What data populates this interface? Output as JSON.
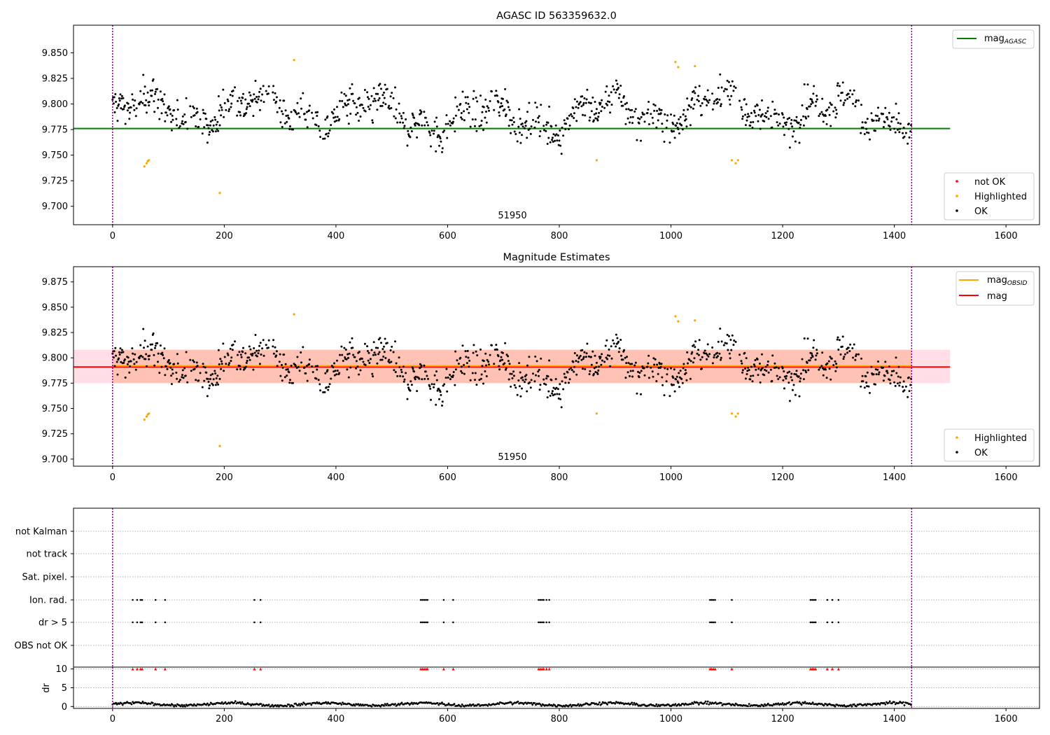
{
  "colors": {
    "ok": "#000000",
    "highlighted": "#ffa500",
    "not_ok": "#ff0000",
    "agasc_line": "#008000",
    "mag_line": "#ff0000",
    "mag_obsid_line": "#ffa500",
    "band_outer": "#ffc0cb",
    "band_inner": "#ffa07a",
    "vline": "#800080",
    "grid": "#b0b0b0"
  },
  "chart_data": [
    {
      "type": "scatter",
      "title": "AGASC ID 563359632.0",
      "xlim": [
        -70,
        1660
      ],
      "ylim": [
        9.682,
        9.877
      ],
      "xticks": [
        "0",
        "200",
        "400",
        "600",
        "800",
        "1000",
        "1200",
        "1400",
        "1600"
      ],
      "yticks": [
        "9.700",
        "9.725",
        "9.750",
        "9.775",
        "9.800",
        "9.825",
        "9.850"
      ],
      "obsid_label": "51950",
      "obsid_boundaries": [
        0,
        1431
      ],
      "agasc_mag": 9.776,
      "agasc_line_xrange": [
        -70,
        1500
      ],
      "highlighted_points": [
        [
          57,
          9.739
        ],
        [
          61,
          9.742
        ],
        [
          63,
          9.744
        ],
        [
          65,
          9.745
        ],
        [
          192,
          9.713
        ],
        [
          325,
          9.843
        ],
        [
          867,
          9.745
        ],
        [
          1008,
          9.841
        ],
        [
          1013,
          9.836
        ],
        [
          1043,
          9.837
        ],
        [
          1109,
          9.745
        ],
        [
          1116,
          9.742
        ],
        [
          1120,
          9.745
        ]
      ],
      "legends": [
        {
          "placement": "top-right",
          "entries": [
            {
              "label": "mag",
              "subscript": "AGASC",
              "kind": "line",
              "color": "#008000"
            }
          ]
        },
        {
          "placement": "bottom-right",
          "entries": [
            {
              "label": "not OK",
              "kind": "dot",
              "color": "#ff0000"
            },
            {
              "label": "Highlighted",
              "kind": "dot",
              "color": "#ffa500"
            },
            {
              "label": "OK",
              "kind": "dot",
              "color": "#000000"
            }
          ]
        }
      ]
    },
    {
      "type": "scatter",
      "title": "Magnitude Estimates",
      "xlim": [
        -70,
        1660
      ],
      "ylim": [
        9.693,
        9.89
      ],
      "xticks": [
        "0",
        "200",
        "400",
        "600",
        "800",
        "1000",
        "1200",
        "1400",
        "1600"
      ],
      "yticks": [
        "9.700",
        "9.725",
        "9.750",
        "9.775",
        "9.800",
        "9.825",
        "9.850",
        "9.875"
      ],
      "obsid_label": "51950",
      "obsid_boundaries": [
        0,
        1431
      ],
      "mag": 9.791,
      "mag_band": [
        9.775,
        9.808
      ],
      "mag_obsid": 9.792,
      "mag_obsid_band": [
        9.775,
        9.808
      ],
      "line_xrange": [
        -70,
        1500
      ],
      "highlighted_points": [
        [
          57,
          9.739
        ],
        [
          61,
          9.742
        ],
        [
          63,
          9.744
        ],
        [
          65,
          9.745
        ],
        [
          192,
          9.713
        ],
        [
          325,
          9.843
        ],
        [
          867,
          9.745
        ],
        [
          1008,
          9.841
        ],
        [
          1013,
          9.836
        ],
        [
          1043,
          9.837
        ],
        [
          1109,
          9.745
        ],
        [
          1116,
          9.742
        ],
        [
          1120,
          9.745
        ]
      ],
      "legends": [
        {
          "placement": "top-right",
          "entries": [
            {
              "label": "mag",
              "subscript": "OBSID",
              "kind": "line",
              "color": "#ffa500"
            },
            {
              "label": "mag",
              "kind": "line",
              "color": "#ff0000"
            }
          ]
        },
        {
          "placement": "bottom-right",
          "entries": [
            {
              "label": "Highlighted",
              "kind": "dot",
              "color": "#ffa500"
            },
            {
              "label": "OK",
              "kind": "dot",
              "color": "#000000"
            }
          ]
        }
      ]
    },
    {
      "type": "scatter",
      "title": "",
      "xlim": [
        -70,
        1660
      ],
      "xticks": [
        "0",
        "200",
        "400",
        "600",
        "800",
        "1000",
        "1200",
        "1400",
        "1600"
      ],
      "flag_rows": [
        "not Kalman",
        "not track",
        "Sat. pixel.",
        "Ion. rad.",
        "dr > 5",
        "OBS not OK"
      ],
      "flag_rows_points": {
        "Ion. rad.": [
          36,
          44,
          50,
          53,
          77,
          94,
          254,
          265,
          552,
          555,
          558,
          561,
          564,
          593,
          610,
          763,
          766,
          769,
          772,
          777,
          782,
          1070,
          1073,
          1076,
          1079,
          1109,
          1250,
          1253,
          1256,
          1259,
          1280,
          1289,
          1300
        ],
        "dr > 5": [
          36,
          44,
          50,
          53,
          77,
          94,
          254,
          265,
          552,
          555,
          558,
          561,
          564,
          593,
          610,
          763,
          766,
          769,
          772,
          777,
          782,
          1070,
          1073,
          1076,
          1079,
          1109,
          1250,
          1253,
          1256,
          1259,
          1280,
          1289,
          1300
        ]
      },
      "obsid_boundaries": [
        0,
        1431
      ]
    },
    {
      "type": "scatter",
      "title": "",
      "ylabel": "dr",
      "xlim": [
        -70,
        1660
      ],
      "ylim": [
        -0.5,
        10.5
      ],
      "xticks": [
        "0",
        "200",
        "400",
        "600",
        "800",
        "1000",
        "1200",
        "1400",
        "1600"
      ],
      "yticks": [
        "0",
        "5",
        "10"
      ],
      "clipped_value": 10,
      "clipped_points": [
        36,
        44,
        50,
        53,
        77,
        94,
        254,
        265,
        552,
        555,
        558,
        561,
        564,
        593,
        610,
        763,
        766,
        769,
        772,
        777,
        782,
        1070,
        1073,
        1076,
        1079,
        1109,
        1250,
        1253,
        1256,
        1259,
        1280,
        1289,
        1300
      ],
      "obsid_boundaries": [
        0,
        1431
      ]
    }
  ]
}
